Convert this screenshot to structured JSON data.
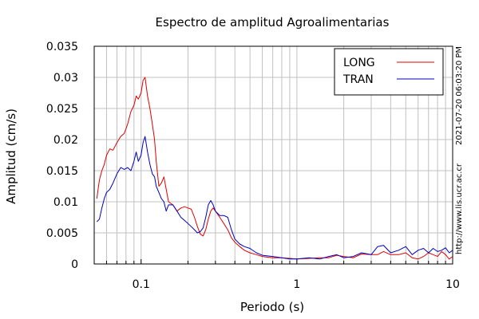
{
  "chart_data": {
    "type": "line",
    "title": "Espectro de amplitud Agroalimentarias",
    "xlabel": "Periodo (s)",
    "ylabel": "Amplitud (cm/s)",
    "x_scale": "log",
    "xlim": [
      0.05,
      10
    ],
    "ylim": [
      0,
      0.035
    ],
    "grid": true,
    "legend_position": "top-right",
    "x_ticks": [
      {
        "value": 0.1,
        "label": "0.1"
      },
      {
        "value": 1,
        "label": "1"
      },
      {
        "value": 10,
        "label": "10"
      }
    ],
    "y_ticks": [
      {
        "value": 0,
        "label": "0"
      },
      {
        "value": 0.005,
        "label": "0.005"
      },
      {
        "value": 0.01,
        "label": "0.01"
      },
      {
        "value": 0.015,
        "label": "0.015"
      },
      {
        "value": 0.02,
        "label": "0.02"
      },
      {
        "value": 0.025,
        "label": "0.025"
      },
      {
        "value": 0.03,
        "label": "0.03"
      },
      {
        "value": 0.035,
        "label": "0.035"
      }
    ],
    "side_text": [
      "2021-07-20 06:03:20 PM",
      "http://www.lis.ucr.ac.cr"
    ],
    "series": [
      {
        "name": "LONG",
        "color": "#e00000",
        "x": [
          0.052,
          0.054,
          0.056,
          0.058,
          0.06,
          0.063,
          0.066,
          0.07,
          0.074,
          0.078,
          0.082,
          0.086,
          0.09,
          0.093,
          0.096,
          0.1,
          0.103,
          0.106,
          0.11,
          0.114,
          0.118,
          0.122,
          0.125,
          0.13,
          0.135,
          0.14,
          0.145,
          0.15,
          0.16,
          0.17,
          0.18,
          0.19,
          0.2,
          0.21,
          0.22,
          0.23,
          0.24,
          0.25,
          0.26,
          0.27,
          0.28,
          0.29,
          0.3,
          0.32,
          0.34,
          0.36,
          0.38,
          0.4,
          0.43,
          0.46,
          0.5,
          0.55,
          0.6,
          0.7,
          0.8,
          0.9,
          1.0,
          1.2,
          1.4,
          1.6,
          1.8,
          2.0,
          2.3,
          2.6,
          3.0,
          3.3,
          3.6,
          4.0,
          4.5,
          5.0,
          5.5,
          6.0,
          6.5,
          7.0,
          7.5,
          8.0,
          8.5,
          9.0,
          9.5,
          10.0
        ],
        "values": [
          0.0105,
          0.0135,
          0.015,
          0.016,
          0.0175,
          0.0185,
          0.0183,
          0.0195,
          0.0205,
          0.021,
          0.0225,
          0.0245,
          0.0255,
          0.027,
          0.0265,
          0.0275,
          0.0295,
          0.03,
          0.027,
          0.025,
          0.0225,
          0.02,
          0.0165,
          0.0125,
          0.013,
          0.014,
          0.012,
          0.01,
          0.0095,
          0.0085,
          0.009,
          0.0092,
          0.009,
          0.0088,
          0.0075,
          0.006,
          0.0048,
          0.0045,
          0.0055,
          0.0072,
          0.0085,
          0.009,
          0.0085,
          0.0075,
          0.0065,
          0.0055,
          0.0042,
          0.0035,
          0.0028,
          0.0022,
          0.0018,
          0.0015,
          0.0012,
          0.001,
          0.001,
          0.0009,
          0.0008,
          0.0009,
          0.001,
          0.001,
          0.0014,
          0.0012,
          0.001,
          0.0016,
          0.0015,
          0.0015,
          0.002,
          0.0015,
          0.0015,
          0.0018,
          0.001,
          0.0008,
          0.0012,
          0.0018,
          0.0015,
          0.0012,
          0.002,
          0.0015,
          0.0008,
          0.0012
        ]
      },
      {
        "name": "TRAN",
        "color": "#0000c0",
        "x": [
          0.052,
          0.054,
          0.056,
          0.058,
          0.06,
          0.063,
          0.066,
          0.07,
          0.074,
          0.078,
          0.082,
          0.086,
          0.09,
          0.093,
          0.096,
          0.1,
          0.103,
          0.106,
          0.11,
          0.114,
          0.118,
          0.122,
          0.125,
          0.13,
          0.135,
          0.14,
          0.145,
          0.15,
          0.16,
          0.17,
          0.18,
          0.19,
          0.2,
          0.21,
          0.22,
          0.23,
          0.24,
          0.25,
          0.26,
          0.27,
          0.28,
          0.29,
          0.3,
          0.32,
          0.34,
          0.36,
          0.38,
          0.4,
          0.43,
          0.46,
          0.5,
          0.55,
          0.6,
          0.7,
          0.8,
          0.9,
          1.0,
          1.2,
          1.4,
          1.6,
          1.8,
          2.0,
          2.3,
          2.6,
          3.0,
          3.3,
          3.6,
          4.0,
          4.5,
          5.0,
          5.5,
          6.0,
          6.5,
          7.0,
          7.5,
          8.0,
          8.5,
          9.0,
          9.5,
          10.0
        ],
        "values": [
          0.0068,
          0.0072,
          0.009,
          0.0105,
          0.0115,
          0.012,
          0.013,
          0.0145,
          0.0155,
          0.0152,
          0.0155,
          0.015,
          0.0165,
          0.018,
          0.0165,
          0.0175,
          0.0195,
          0.0205,
          0.018,
          0.016,
          0.0145,
          0.014,
          0.0125,
          0.0115,
          0.0105,
          0.01,
          0.0085,
          0.0095,
          0.0095,
          0.0085,
          0.0075,
          0.007,
          0.0065,
          0.006,
          0.0055,
          0.005,
          0.0052,
          0.0058,
          0.0075,
          0.0095,
          0.0102,
          0.0095,
          0.0085,
          0.0078,
          0.0078,
          0.0075,
          0.0055,
          0.004,
          0.0032,
          0.0028,
          0.0025,
          0.0018,
          0.0014,
          0.0012,
          0.001,
          0.0008,
          0.0008,
          0.001,
          0.0008,
          0.0012,
          0.0015,
          0.001,
          0.0012,
          0.0018,
          0.0015,
          0.0028,
          0.003,
          0.0018,
          0.0022,
          0.0028,
          0.0015,
          0.0022,
          0.0025,
          0.0018,
          0.0025,
          0.002,
          0.0022,
          0.0026,
          0.0018,
          0.0022
        ]
      }
    ]
  }
}
